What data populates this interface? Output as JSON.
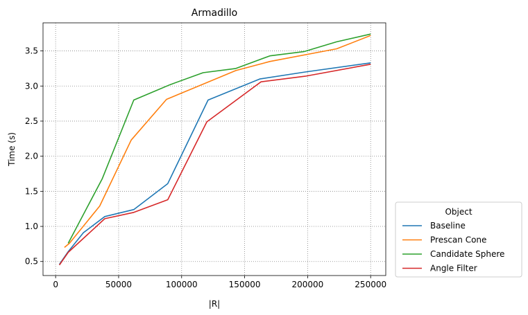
{
  "chart_data": {
    "type": "line",
    "title": "Armadillo",
    "xlabel": "|R|",
    "ylabel": "Time (s)",
    "xlim": [
      -10000,
      262000
    ],
    "ylim": [
      0.3,
      3.9
    ],
    "xticks": [
      0,
      50000,
      100000,
      150000,
      200000,
      250000
    ],
    "xtick_labels": [
      "0",
      "50000",
      "100000",
      "150000",
      "200000",
      "250000"
    ],
    "yticks": [
      0.5,
      1.0,
      1.5,
      2.0,
      2.5,
      3.0,
      3.5
    ],
    "ytick_labels": [
      "0.5",
      "1.0",
      "1.5",
      "2.0",
      "2.5",
      "3.0",
      "3.5"
    ],
    "grid": true,
    "legend": {
      "title": "Object",
      "placement": "outside-lower-right"
    },
    "series": [
      {
        "name": "Baseline",
        "color": "#1f77b4",
        "x": [
          3000,
          10000,
          22000,
          39000,
          62000,
          89000,
          121000,
          162000,
          198000,
          250000
        ],
        "y": [
          0.46,
          0.64,
          0.91,
          1.14,
          1.24,
          1.61,
          2.8,
          3.1,
          3.2,
          3.33
        ]
      },
      {
        "name": "Prescan Cone",
        "color": "#ff7f0e",
        "x": [
          7000,
          11000,
          35000,
          60000,
          88000,
          143000,
          170000,
          223000,
          250000
        ],
        "y": [
          0.7,
          0.76,
          1.29,
          2.23,
          2.81,
          3.22,
          3.35,
          3.53,
          3.72
        ]
      },
      {
        "name": "Candidate Sphere",
        "color": "#2ca02c",
        "x": [
          10000,
          37000,
          62000,
          91000,
          117000,
          143000,
          170000,
          197000,
          223000,
          250000
        ],
        "y": [
          0.76,
          1.68,
          2.8,
          3.02,
          3.19,
          3.25,
          3.43,
          3.49,
          3.63,
          3.74
        ]
      },
      {
        "name": "Angle Filter",
        "color": "#d62728",
        "x": [
          3000,
          10000,
          39000,
          62000,
          89000,
          120000,
          163000,
          198000,
          250000
        ],
        "y": [
          0.45,
          0.63,
          1.11,
          1.2,
          1.38,
          2.49,
          3.06,
          3.14,
          3.31
        ]
      }
    ]
  }
}
